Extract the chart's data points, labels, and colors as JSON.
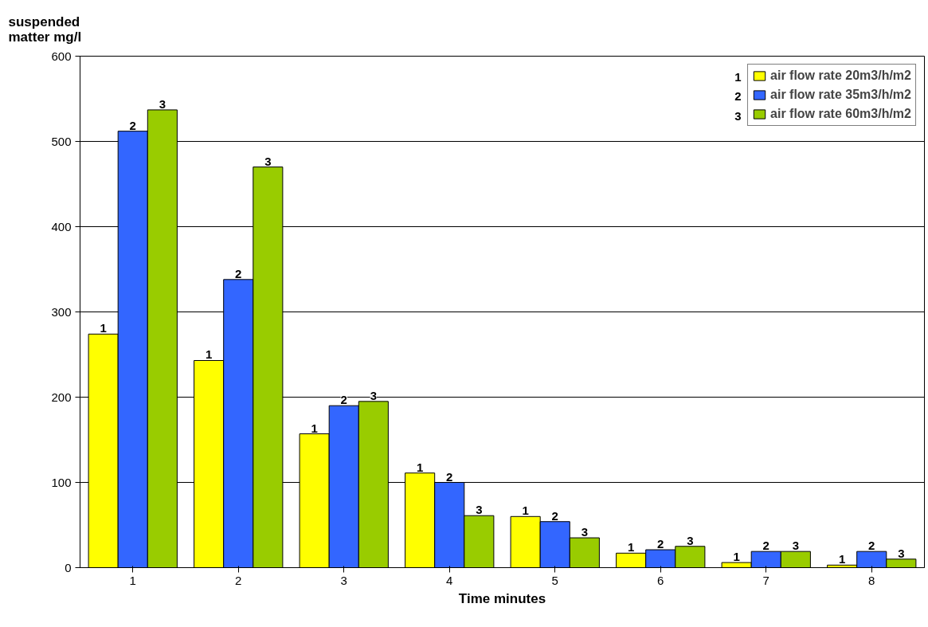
{
  "chart_data": {
    "type": "bar",
    "ylabel": "suspended\nmatter mg/l",
    "xlabel": "Time minutes",
    "categories": [
      "1",
      "2",
      "3",
      "4",
      "5",
      "6",
      "7",
      "8"
    ],
    "series": [
      {
        "name": "air flow rate 20m3/h/m2",
        "color": "#ffff00",
        "values": [
          274,
          243,
          157,
          111,
          60,
          17,
          6,
          3
        ]
      },
      {
        "name": "air flow rate 35m3/h/m2",
        "color": "#3366ff",
        "values": [
          512,
          338,
          190,
          100,
          54,
          21,
          19,
          19
        ]
      },
      {
        "name": "air flow rate 60m3/h/m2",
        "color": "#99cc00",
        "values": [
          537,
          470,
          195,
          61,
          35,
          25,
          19,
          10
        ]
      }
    ],
    "annotations": [
      "1",
      "2",
      "3",
      "1",
      "2",
      "3",
      "1",
      "2",
      "3",
      "1",
      "2",
      "3",
      "1",
      "2",
      "3",
      "1",
      "2",
      "3",
      "1",
      "2",
      "3",
      "1",
      "2",
      "3",
      "1",
      "2",
      "3"
    ],
    "ylim": [
      0,
      600
    ],
    "yticks": [
      0,
      100,
      200,
      300,
      400,
      500,
      600
    ],
    "grid": "y",
    "legend": "top right"
  }
}
